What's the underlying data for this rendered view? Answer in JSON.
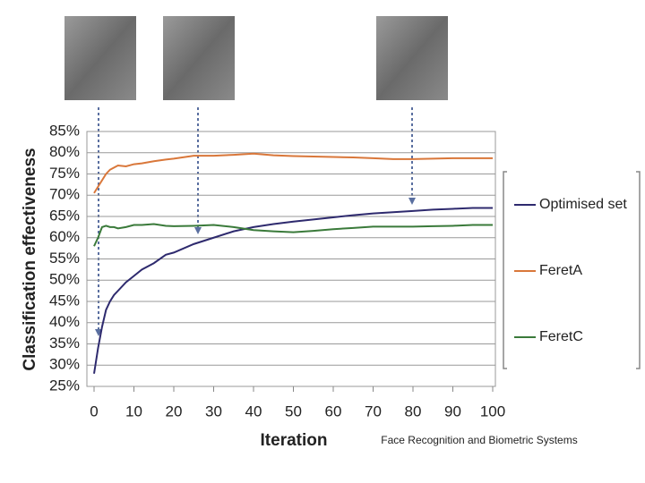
{
  "chart_data": {
    "type": "line",
    "ylabel": "Classification effectiveness",
    "xlabel": "Iteration",
    "x": [
      0,
      1,
      2,
      3,
      4,
      5,
      6,
      8,
      10,
      12,
      15,
      18,
      20,
      25,
      30,
      35,
      40,
      45,
      50,
      55,
      60,
      65,
      70,
      75,
      80,
      85,
      90,
      95,
      100
    ],
    "series": [
      {
        "name": "Optimised set",
        "color": "#2e2a6e",
        "values": [
          28,
          34,
          39,
          43,
          45,
          46.5,
          47.5,
          49.5,
          51,
          52.5,
          54,
          56,
          56.5,
          58.5,
          60,
          61.5,
          62.5,
          63.2,
          63.8,
          64.3,
          64.8,
          65.3,
          65.7,
          66,
          66.3,
          66.6,
          66.8,
          67,
          67
        ]
      },
      {
        "name": "FeretA",
        "color": "#d9773a",
        "values": [
          70.5,
          72,
          73.5,
          75,
          76,
          76.5,
          77,
          76.8,
          77.3,
          77.5,
          78,
          78.4,
          78.6,
          79.3,
          79.3,
          79.5,
          79.8,
          79.4,
          79.2,
          79.1,
          79,
          78.9,
          78.7,
          78.5,
          78.5,
          78.6,
          78.7,
          78.7,
          78.7
        ]
      },
      {
        "name": "FeretC",
        "color": "#3a7a3a",
        "values": [
          58,
          60,
          62.5,
          62.8,
          62.5,
          62.5,
          62.2,
          62.5,
          63,
          63,
          63.2,
          62.8,
          62.7,
          62.8,
          63,
          62.5,
          61.8,
          61.5,
          61.3,
          61.6,
          62,
          62.3,
          62.6,
          62.6,
          62.6,
          62.7,
          62.8,
          63,
          63
        ]
      }
    ],
    "xlim": [
      0,
      100
    ],
    "xticks": [
      0,
      10,
      20,
      30,
      40,
      50,
      60,
      70,
      80,
      90,
      100
    ],
    "ylim": [
      25,
      85
    ],
    "yticks": [
      {
        "value": 25,
        "label": "25%"
      },
      {
        "value": 30,
        "label": "30%"
      },
      {
        "value": 35,
        "label": "35%"
      },
      {
        "value": 40,
        "label": "40%"
      },
      {
        "value": 45,
        "label": "45%"
      },
      {
        "value": 50,
        "label": "50%"
      },
      {
        "value": 55,
        "label": "55%"
      },
      {
        "value": 60,
        "label": "60%"
      },
      {
        "value": 65,
        "label": "65%"
      },
      {
        "value": 70,
        "label": "70%"
      },
      {
        "value": 75,
        "label": "75%"
      },
      {
        "value": 80,
        "label": "80%"
      },
      {
        "value": 85,
        "label": "85%"
      }
    ],
    "grid": true,
    "legend": "right"
  },
  "footer": "Face Recognition and Biometric Systems"
}
